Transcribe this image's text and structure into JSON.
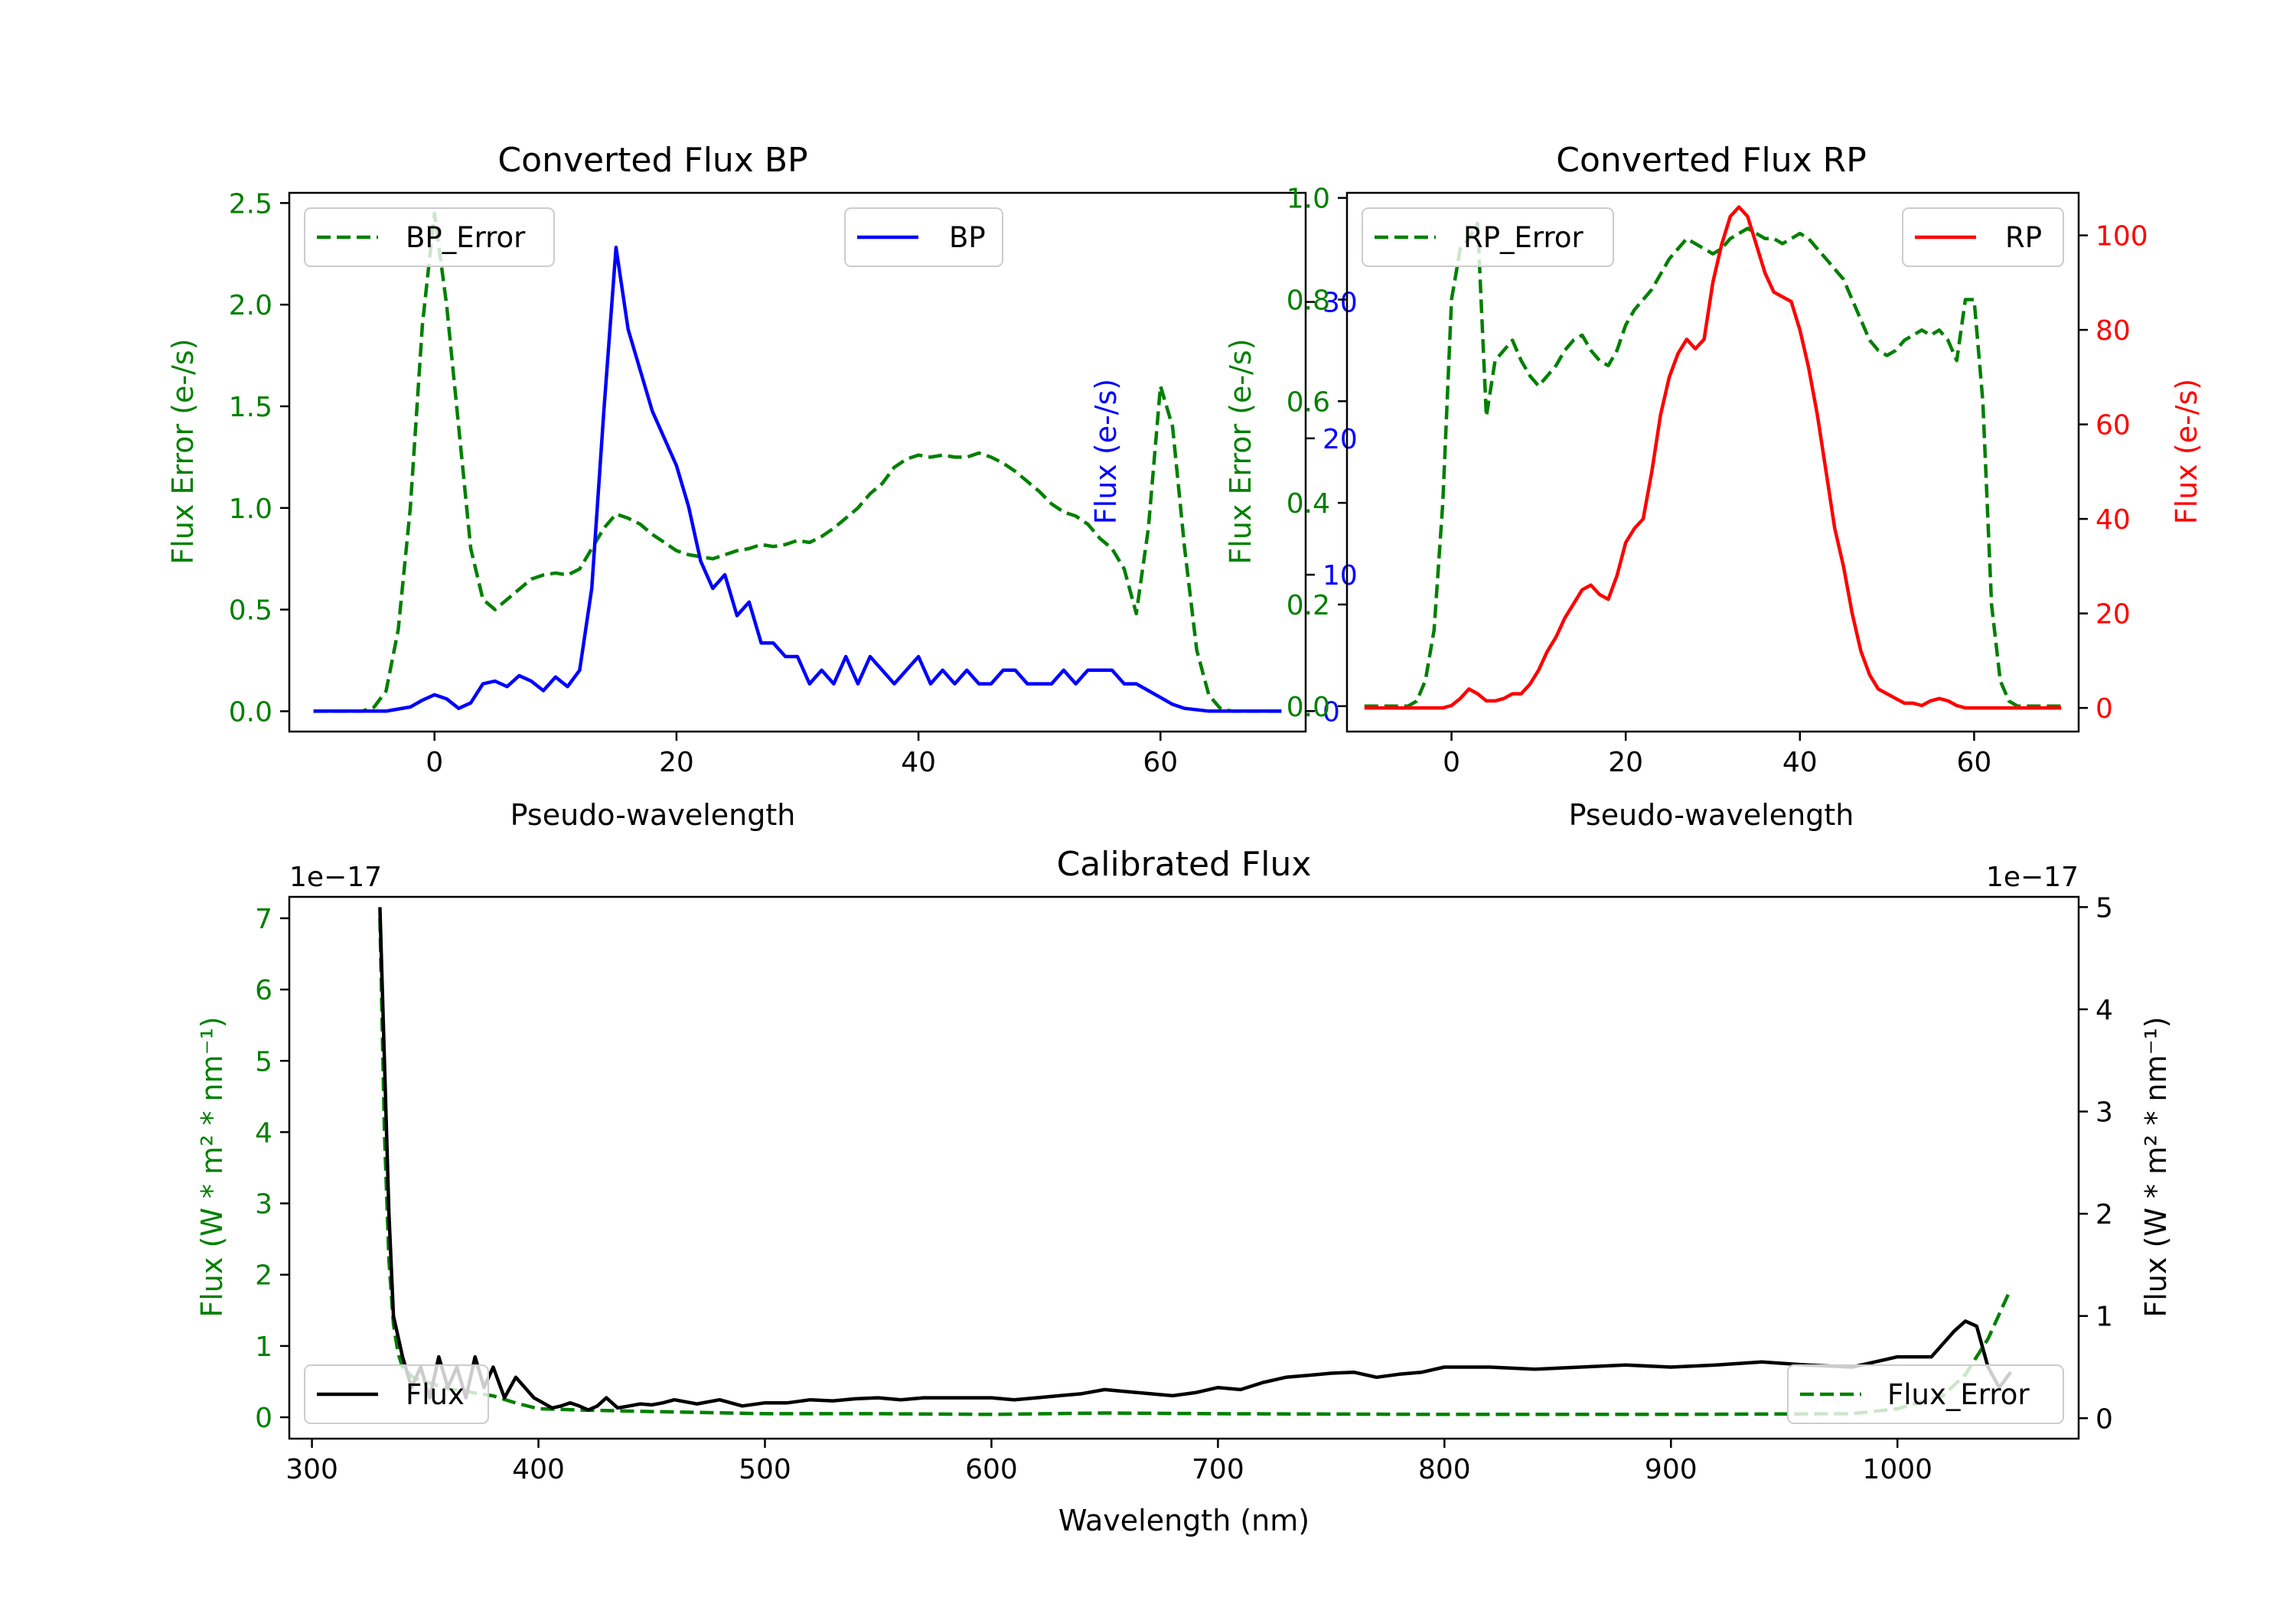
{
  "figure": {
    "colors": {
      "green": "#008000",
      "blue": "#0000ff",
      "red": "#ff0000",
      "black": "#000000"
    }
  },
  "chart_data": [
    {
      "id": "bp",
      "type": "line",
      "title": "Converted Flux BP",
      "xlabel": "Pseudo-wavelength",
      "ylabel_left": "Flux Error (e-/s)",
      "ylabel_right": "Flux (e-/s)",
      "xlim": [
        -12,
        72
      ],
      "ylim_left": [
        -0.1,
        2.55
      ],
      "ylim_right": [
        -1.5,
        38
      ],
      "xticks": [
        0,
        20,
        40,
        60
      ],
      "xtick_labels": [
        "0",
        "20",
        "40",
        "60"
      ],
      "yticks_left": [
        0.0,
        0.5,
        1.0,
        1.5,
        2.0,
        2.5
      ],
      "ytick_labels_left": [
        "0.0",
        "0.5",
        "1.0",
        "1.5",
        "2.0",
        "2.5"
      ],
      "yticks_right": [
        0,
        10,
        20,
        30
      ],
      "ytick_labels_right": [
        "0",
        "10",
        "20",
        "30"
      ],
      "series": [
        {
          "name": "BP_Error",
          "axis": "left",
          "color": "#008000",
          "dash": true,
          "legend": "top-left",
          "x": [
            -10,
            -6,
            -5,
            -4,
            -3,
            -2,
            -1,
            0,
            1,
            2,
            3,
            4,
            5,
            6,
            7,
            8,
            9,
            10,
            11,
            12,
            13,
            14,
            15,
            16,
            17,
            18,
            19,
            20,
            21,
            22,
            23,
            24,
            25,
            26,
            27,
            28,
            29,
            30,
            31,
            32,
            33,
            34,
            35,
            36,
            37,
            38,
            39,
            40,
            41,
            42,
            43,
            44,
            45,
            46,
            47,
            48,
            49,
            50,
            51,
            52,
            53,
            54,
            55,
            56,
            57,
            58,
            59,
            60,
            61,
            62,
            63,
            64,
            65,
            66,
            70
          ],
          "y": [
            0,
            0,
            0.02,
            0.1,
            0.4,
            1.0,
            1.9,
            2.45,
            2.0,
            1.4,
            0.8,
            0.55,
            0.5,
            0.55,
            0.6,
            0.65,
            0.67,
            0.68,
            0.67,
            0.7,
            0.8,
            0.9,
            0.97,
            0.95,
            0.92,
            0.87,
            0.83,
            0.79,
            0.77,
            0.76,
            0.75,
            0.77,
            0.79,
            0.8,
            0.82,
            0.81,
            0.82,
            0.84,
            0.83,
            0.86,
            0.9,
            0.95,
            1.0,
            1.07,
            1.12,
            1.2,
            1.24,
            1.26,
            1.25,
            1.26,
            1.25,
            1.25,
            1.27,
            1.25,
            1.22,
            1.18,
            1.13,
            1.08,
            1.02,
            0.98,
            0.96,
            0.92,
            0.85,
            0.8,
            0.7,
            0.48,
            0.9,
            1.6,
            1.4,
            0.8,
            0.3,
            0.08,
            0.01,
            0,
            0
          ]
        },
        {
          "name": "BP",
          "axis": "right",
          "color": "#0000ff",
          "dash": false,
          "legend": "top-right",
          "x": [
            -10,
            -4,
            -2,
            -1,
            0,
            1,
            2,
            3,
            4,
            5,
            6,
            7,
            8,
            9,
            10,
            11,
            12,
            13,
            14,
            15,
            16,
            17,
            18,
            19,
            20,
            21,
            22,
            23,
            24,
            25,
            26,
            27,
            28,
            29,
            30,
            31,
            32,
            33,
            34,
            35,
            36,
            37,
            38,
            39,
            40,
            41,
            42,
            43,
            44,
            45,
            46,
            47,
            48,
            49,
            50,
            51,
            52,
            53,
            54,
            55,
            56,
            57,
            58,
            59,
            60,
            61,
            62,
            64,
            66,
            70
          ],
          "y": [
            0,
            0,
            0.3,
            0.8,
            1.2,
            0.9,
            0.2,
            0.6,
            2.0,
            2.2,
            1.8,
            2.6,
            2.2,
            1.5,
            2.5,
            1.8,
            3.0,
            9,
            22,
            34,
            28,
            25,
            22,
            20,
            18,
            15,
            11,
            9,
            10,
            7,
            8,
            5,
            5,
            4,
            4,
            2,
            3,
            2,
            4,
            2,
            4,
            3,
            2,
            3,
            4,
            2,
            3,
            2,
            3,
            2,
            2,
            3,
            3,
            2,
            2,
            2,
            3,
            2,
            3,
            3,
            3,
            2,
            2,
            1.5,
            1,
            0.5,
            0.2,
            0,
            0,
            0
          ]
        }
      ]
    },
    {
      "id": "rp",
      "type": "line",
      "title": "Converted Flux RP",
      "xlabel": "Pseudo-wavelength",
      "ylabel_left": "Flux Error (e-/s)",
      "ylabel_right": "Flux (e-/s)",
      "xlim": [
        -12,
        72
      ],
      "ylim_left": [
        -0.05,
        1.01
      ],
      "ylim_right": [
        -5,
        109
      ],
      "xticks": [
        0,
        20,
        40,
        60
      ],
      "xtick_labels": [
        "0",
        "20",
        "40",
        "60"
      ],
      "yticks_left": [
        0.0,
        0.2,
        0.4,
        0.6,
        0.8,
        1.0
      ],
      "ytick_labels_left": [
        "0.0",
        "0.2",
        "0.4",
        "0.6",
        "0.8",
        "1.0"
      ],
      "yticks_right": [
        0,
        20,
        40,
        60,
        80,
        100
      ],
      "ytick_labels_right": [
        "0",
        "20",
        "40",
        "60",
        "80",
        "100"
      ],
      "series": [
        {
          "name": "RP_Error",
          "axis": "left",
          "color": "#008000",
          "dash": true,
          "legend": "top-left",
          "x": [
            -10,
            -5,
            -4,
            -3,
            -2,
            -1,
            0,
            1,
            2,
            3,
            4,
            5,
            6,
            7,
            8,
            9,
            10,
            11,
            12,
            13,
            14,
            15,
            16,
            17,
            18,
            19,
            20,
            21,
            22,
            23,
            24,
            25,
            26,
            27,
            28,
            29,
            30,
            31,
            32,
            33,
            34,
            35,
            36,
            37,
            38,
            39,
            40,
            41,
            42,
            43,
            44,
            45,
            46,
            47,
            48,
            49,
            50,
            51,
            52,
            53,
            54,
            55,
            56,
            57,
            58,
            59,
            60,
            61,
            62,
            63,
            64,
            65,
            70
          ],
          "y": [
            0,
            0,
            0.01,
            0.05,
            0.15,
            0.4,
            0.8,
            0.9,
            0.92,
            0.95,
            0.57,
            0.68,
            0.7,
            0.72,
            0.68,
            0.65,
            0.63,
            0.65,
            0.67,
            0.7,
            0.72,
            0.73,
            0.7,
            0.68,
            0.67,
            0.7,
            0.75,
            0.78,
            0.8,
            0.82,
            0.85,
            0.88,
            0.9,
            0.92,
            0.91,
            0.9,
            0.89,
            0.9,
            0.92,
            0.93,
            0.94,
            0.93,
            0.92,
            0.92,
            0.91,
            0.92,
            0.93,
            0.92,
            0.9,
            0.88,
            0.86,
            0.84,
            0.8,
            0.76,
            0.72,
            0.7,
            0.69,
            0.7,
            0.72,
            0.73,
            0.74,
            0.73,
            0.74,
            0.72,
            0.68,
            0.8,
            0.8,
            0.6,
            0.2,
            0.05,
            0.01,
            0,
            0
          ]
        },
        {
          "name": "RP",
          "axis": "right",
          "color": "#ff0000",
          "dash": false,
          "legend": "top-right",
          "x": [
            -10,
            -2,
            -1,
            0,
            1,
            2,
            3,
            4,
            5,
            6,
            7,
            8,
            9,
            10,
            11,
            12,
            13,
            14,
            15,
            16,
            17,
            18,
            19,
            20,
            21,
            22,
            23,
            24,
            25,
            26,
            27,
            28,
            29,
            30,
            31,
            32,
            33,
            34,
            35,
            36,
            37,
            38,
            39,
            40,
            41,
            42,
            43,
            44,
            45,
            46,
            47,
            48,
            49,
            50,
            51,
            52,
            53,
            54,
            55,
            56,
            57,
            58,
            59,
            60,
            61,
            62,
            64,
            66,
            70
          ],
          "y": [
            0,
            0,
            0,
            0.5,
            2,
            4,
            3,
            1.5,
            1.5,
            2,
            3,
            3,
            5,
            8,
            12,
            15,
            19,
            22,
            25,
            26,
            24,
            23,
            28,
            35,
            38,
            40,
            50,
            62,
            70,
            75,
            78,
            76,
            78,
            90,
            98,
            104,
            106,
            104,
            98,
            92,
            88,
            87,
            86,
            80,
            72,
            62,
            50,
            38,
            30,
            20,
            12,
            7,
            4,
            3,
            2,
            1,
            1,
            0.5,
            1.5,
            2,
            1.5,
            0.5,
            0,
            0,
            0,
            0,
            0,
            0,
            0
          ]
        }
      ]
    },
    {
      "id": "cal",
      "type": "line",
      "title": "Calibrated Flux",
      "xlabel": "Wavelength (nm)",
      "ylabel_left": "Flux (W * m² * nm⁻¹)",
      "ylabel_right": "Flux (W * m² * nm⁻¹)",
      "offset_left": "1e−17",
      "offset_right": "1e−17",
      "xlim": [
        290,
        1080
      ],
      "ylim_left": [
        -0.3,
        7.3
      ],
      "ylim_right": [
        -0.2,
        5.1
      ],
      "xticks": [
        300,
        400,
        500,
        600,
        700,
        800,
        900,
        1000
      ],
      "xtick_labels": [
        "300",
        "400",
        "500",
        "600",
        "700",
        "800",
        "900",
        "1000"
      ],
      "yticks_left": [
        0,
        1,
        2,
        3,
        4,
        5,
        6,
        7
      ],
      "ytick_labels_left": [
        "0",
        "1",
        "2",
        "3",
        "4",
        "5",
        "6",
        "7"
      ],
      "yticks_right": [
        0,
        1,
        2,
        3,
        4,
        5
      ],
      "ytick_labels_right": [
        "0",
        "1",
        "2",
        "3",
        "4",
        "5"
      ],
      "series": [
        {
          "name": "Flux_Error",
          "axis": "left",
          "color": "#008000",
          "dash": true,
          "legend": "bottom-right",
          "x": [
            330,
            332,
            334,
            336,
            338,
            340,
            345,
            350,
            355,
            360,
            370,
            380,
            390,
            400,
            420,
            450,
            500,
            550,
            600,
            650,
            700,
            800,
            900,
            980,
            1000,
            1020,
            1030,
            1040,
            1050
          ],
          "y": [
            7.0,
            4.0,
            2.2,
            1.3,
            0.9,
            0.7,
            0.55,
            0.5,
            0.45,
            0.4,
            0.35,
            0.3,
            0.2,
            0.12,
            0.1,
            0.08,
            0.05,
            0.05,
            0.04,
            0.06,
            0.05,
            0.04,
            0.04,
            0.05,
            0.12,
            0.3,
            0.6,
            1.1,
            1.8
          ]
        },
        {
          "name": "Flux",
          "axis": "right",
          "color": "#000000",
          "dash": false,
          "legend": "bottom-left",
          "x": [
            330,
            332,
            334,
            336,
            340,
            344,
            348,
            352,
            356,
            360,
            364,
            368,
            372,
            376,
            380,
            385,
            390,
            394,
            398,
            402,
            406,
            410,
            414,
            418,
            422,
            426,
            430,
            435,
            440,
            445,
            450,
            455,
            460,
            470,
            480,
            490,
            500,
            510,
            520,
            530,
            540,
            550,
            560,
            570,
            580,
            590,
            600,
            610,
            620,
            630,
            640,
            650,
            660,
            670,
            680,
            690,
            700,
            710,
            720,
            730,
            740,
            750,
            760,
            770,
            780,
            790,
            800,
            820,
            840,
            860,
            880,
            900,
            920,
            940,
            960,
            980,
            1000,
            1015,
            1025,
            1030,
            1035,
            1040,
            1045,
            1050
          ],
          "y": [
            5.0,
            3.5,
            2.0,
            1.0,
            0.6,
            0.3,
            0.5,
            0.2,
            0.6,
            0.3,
            0.5,
            0.2,
            0.6,
            0.3,
            0.5,
            0.2,
            0.4,
            0.3,
            0.2,
            0.15,
            0.1,
            0.12,
            0.15,
            0.12,
            0.08,
            0.12,
            0.2,
            0.1,
            0.12,
            0.14,
            0.13,
            0.15,
            0.18,
            0.14,
            0.18,
            0.12,
            0.15,
            0.15,
            0.18,
            0.17,
            0.19,
            0.2,
            0.18,
            0.2,
            0.2,
            0.2,
            0.2,
            0.18,
            0.2,
            0.22,
            0.24,
            0.28,
            0.26,
            0.24,
            0.22,
            0.25,
            0.3,
            0.28,
            0.35,
            0.4,
            0.42,
            0.44,
            0.45,
            0.4,
            0.43,
            0.45,
            0.5,
            0.5,
            0.48,
            0.5,
            0.52,
            0.5,
            0.52,
            0.55,
            0.52,
            0.5,
            0.6,
            0.6,
            0.85,
            0.95,
            0.9,
            0.5,
            0.3,
            0.45
          ]
        }
      ]
    }
  ]
}
